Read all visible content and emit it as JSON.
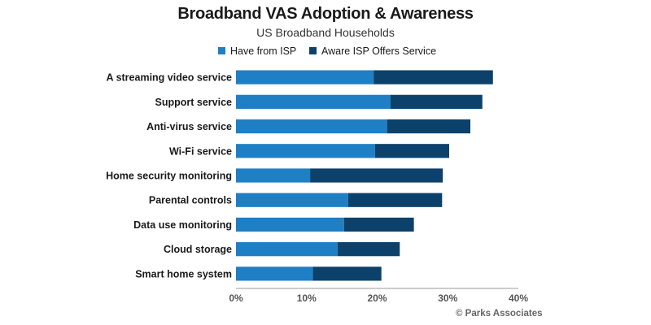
{
  "chart_data": {
    "type": "bar",
    "orientation": "horizontal",
    "stacked": true,
    "title": "Broadband VAS Adoption & Awareness",
    "subtitle": "US Broadband Households",
    "categories": [
      "A streaming video service",
      "Support service",
      "Anti-virus service",
      "Wi-Fi service",
      "Home security monitoring",
      "Parental controls",
      "Data use monitoring",
      "Cloud storage",
      "Smart home system"
    ],
    "series": [
      {
        "name": "Have from ISP",
        "color": "#1f7fc4",
        "values": [
          19.5,
          21.9,
          21.4,
          19.7,
          10.5,
          15.9,
          15.3,
          14.4,
          10.9
        ]
      },
      {
        "name": "Aware ISP Offers Service",
        "color": "#0c416b",
        "values": [
          16.9,
          13.0,
          11.8,
          10.5,
          18.8,
          13.3,
          9.9,
          8.8,
          9.7
        ]
      }
    ],
    "xlim": [
      0,
      40
    ],
    "xticks": [
      "0%",
      "10%",
      "20%",
      "30%",
      "40%"
    ],
    "legend_position": "top",
    "grid": false
  },
  "credit": "© Parks Associates"
}
